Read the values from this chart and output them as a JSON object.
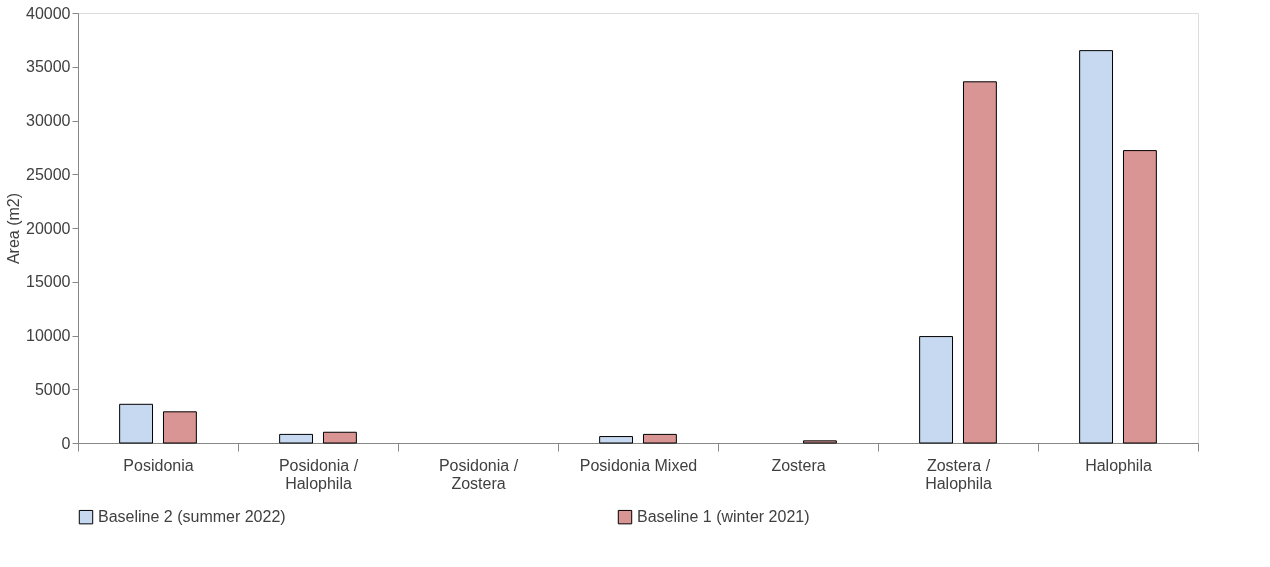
{
  "chart_data": {
    "type": "bar",
    "ylabel": "Area (m2)",
    "categories": [
      "Posidonia",
      "Posidonia / Halophila",
      "Posidonia / Zostera",
      "Posidonia Mixed",
      "Zostera",
      "Zostera / Halophila",
      "Halophila"
    ],
    "series": [
      {
        "name": "Baseline 2 (summer 2022)",
        "color": "#c6d9f0",
        "values": [
          3600,
          800,
          null,
          600,
          null,
          9900,
          36500
        ]
      },
      {
        "name": "Baseline 1 (winter 2021)",
        "color": "#d99594",
        "values": [
          2900,
          1000,
          null,
          800,
          200,
          33600,
          27200
        ]
      }
    ],
    "ylim": [
      0,
      40000
    ],
    "yticks": [
      0,
      5000,
      10000,
      15000,
      20000,
      25000,
      30000,
      35000,
      40000
    ],
    "grid": false,
    "legend": "bottom"
  }
}
